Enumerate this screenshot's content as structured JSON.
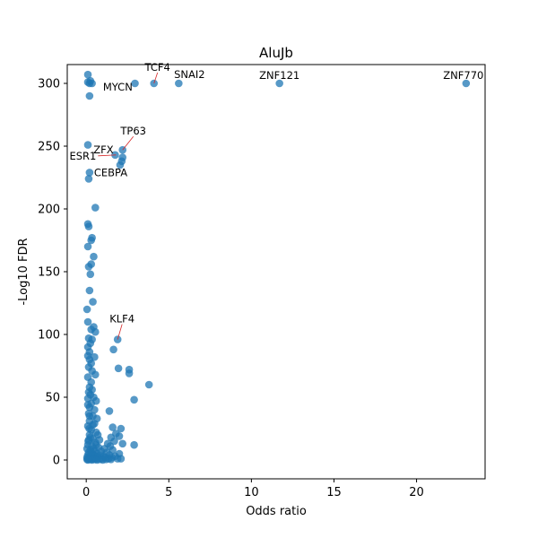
{
  "chart_data": {
    "type": "scatter",
    "title": "AluJb",
    "xlabel": "Odds ratio",
    "ylabel": "-Log10 FDR",
    "xlim": [
      -1.15,
      24.15
    ],
    "ylim": [
      -15,
      315
    ],
    "xticks": [
      0,
      5,
      10,
      15,
      20
    ],
    "yticks": [
      0,
      50,
      100,
      150,
      200,
      250,
      300
    ],
    "grid": false,
    "legend": "none",
    "point_color": "#1f77b4",
    "point_alpha": 0.75,
    "annotation_line_color": "#d62728",
    "annotations": [
      {
        "label": "TCF4",
        "x": 4.1,
        "y": 300
      },
      {
        "label": "SNAI2",
        "x": 5.6,
        "y": 300
      },
      {
        "label": "ZNF121",
        "x": 11.7,
        "y": 300
      },
      {
        "label": "ZNF770",
        "x": 23.0,
        "y": 300
      },
      {
        "label": "MYCN",
        "x": 0.2,
        "y": 300
      },
      {
        "label": "TP63",
        "x": 2.2,
        "y": 247
      },
      {
        "label": "ZFX",
        "x": 1.7,
        "y": 243
      },
      {
        "label": "ESR1",
        "x": 1.8,
        "y": 243
      },
      {
        "label": "CEBPA",
        "x": 0.2,
        "y": 229
      },
      {
        "label": "KLF4",
        "x": 1.9,
        "y": 96
      }
    ],
    "points": [
      {
        "x": 0.1,
        "y": 307
      },
      {
        "x": 0.1,
        "y": 301
      },
      {
        "x": 0.2,
        "y": 300
      },
      {
        "x": 0.25,
        "y": 302
      },
      {
        "x": 0.35,
        "y": 300
      },
      {
        "x": 0.2,
        "y": 290
      },
      {
        "x": 2.95,
        "y": 300
      },
      {
        "x": 4.1,
        "y": 300
      },
      {
        "x": 5.6,
        "y": 300
      },
      {
        "x": 11.7,
        "y": 300
      },
      {
        "x": 23.0,
        "y": 300
      },
      {
        "x": 0.1,
        "y": 251
      },
      {
        "x": 2.2,
        "y": 247
      },
      {
        "x": 1.75,
        "y": 243
      },
      {
        "x": 2.2,
        "y": 241
      },
      {
        "x": 2.15,
        "y": 238
      },
      {
        "x": 2.05,
        "y": 235
      },
      {
        "x": 0.2,
        "y": 229
      },
      {
        "x": 0.15,
        "y": 224
      },
      {
        "x": 0.55,
        "y": 201
      },
      {
        "x": 0.1,
        "y": 188
      },
      {
        "x": 0.15,
        "y": 186
      },
      {
        "x": 0.35,
        "y": 177
      },
      {
        "x": 0.3,
        "y": 175
      },
      {
        "x": 0.1,
        "y": 170
      },
      {
        "x": 0.45,
        "y": 162
      },
      {
        "x": 0.3,
        "y": 156
      },
      {
        "x": 0.15,
        "y": 154
      },
      {
        "x": 0.25,
        "y": 148
      },
      {
        "x": 0.2,
        "y": 135
      },
      {
        "x": 0.4,
        "y": 126
      },
      {
        "x": 0.05,
        "y": 120
      },
      {
        "x": 0.1,
        "y": 110
      },
      {
        "x": 0.45,
        "y": 106
      },
      {
        "x": 0.3,
        "y": 104
      },
      {
        "x": 0.55,
        "y": 102
      },
      {
        "x": 0.15,
        "y": 97
      },
      {
        "x": 0.35,
        "y": 96
      },
      {
        "x": 1.9,
        "y": 96
      },
      {
        "x": 0.25,
        "y": 93
      },
      {
        "x": 0.1,
        "y": 90
      },
      {
        "x": 1.65,
        "y": 88
      },
      {
        "x": 0.2,
        "y": 86
      },
      {
        "x": 0.1,
        "y": 83
      },
      {
        "x": 0.5,
        "y": 82
      },
      {
        "x": 0.2,
        "y": 80
      },
      {
        "x": 0.3,
        "y": 77
      },
      {
        "x": 0.15,
        "y": 74
      },
      {
        "x": 1.95,
        "y": 73
      },
      {
        "x": 2.6,
        "y": 72
      },
      {
        "x": 0.35,
        "y": 71
      },
      {
        "x": 2.6,
        "y": 69
      },
      {
        "x": 0.55,
        "y": 68
      },
      {
        "x": 0.1,
        "y": 66
      },
      {
        "x": 3.8,
        "y": 60
      },
      {
        "x": 0.2,
        "y": 58
      },
      {
        "x": 0.35,
        "y": 56
      },
      {
        "x": 0.15,
        "y": 54
      },
      {
        "x": 0.25,
        "y": 52
      },
      {
        "x": 0.45,
        "y": 50
      },
      {
        "x": 0.1,
        "y": 49
      },
      {
        "x": 2.9,
        "y": 48
      },
      {
        "x": 0.6,
        "y": 47
      },
      {
        "x": 0.3,
        "y": 45
      },
      {
        "x": 0.2,
        "y": 42
      },
      {
        "x": 0.5,
        "y": 40
      },
      {
        "x": 1.4,
        "y": 39
      },
      {
        "x": 0.15,
        "y": 37
      },
      {
        "x": 0.4,
        "y": 35
      },
      {
        "x": 0.65,
        "y": 33
      },
      {
        "x": 0.2,
        "y": 31
      },
      {
        "x": 0.5,
        "y": 29
      },
      {
        "x": 0.1,
        "y": 27
      },
      {
        "x": 1.6,
        "y": 26
      },
      {
        "x": 2.1,
        "y": 25
      },
      {
        "x": 0.3,
        "y": 24
      },
      {
        "x": 0.6,
        "y": 22
      },
      {
        "x": 1.8,
        "y": 21
      },
      {
        "x": 0.2,
        "y": 20
      },
      {
        "x": 2.0,
        "y": 19
      },
      {
        "x": 1.5,
        "y": 18
      },
      {
        "x": 0.4,
        "y": 17
      },
      {
        "x": 0.15,
        "y": 16
      },
      {
        "x": 1.7,
        "y": 15
      },
      {
        "x": 0.55,
        "y": 14
      },
      {
        "x": 1.3,
        "y": 13
      },
      {
        "x": 2.2,
        "y": 13
      },
      {
        "x": 0.1,
        "y": 12
      },
      {
        "x": 2.9,
        "y": 12
      },
      {
        "x": 0.35,
        "y": 11
      },
      {
        "x": 1.45,
        "y": 11
      },
      {
        "x": 0.75,
        "y": 10
      },
      {
        "x": 0.05,
        "y": 9
      },
      {
        "x": 1.1,
        "y": 9
      },
      {
        "x": 0.25,
        "y": 8
      },
      {
        "x": 1.6,
        "y": 8
      },
      {
        "x": 0.5,
        "y": 7
      },
      {
        "x": 0.9,
        "y": 7
      },
      {
        "x": 0.15,
        "y": 6
      },
      {
        "x": 1.25,
        "y": 6
      },
      {
        "x": 0.35,
        "y": 5
      },
      {
        "x": 0.65,
        "y": 5
      },
      {
        "x": 2.0,
        "y": 5
      },
      {
        "x": 0.1,
        "y": 4
      },
      {
        "x": 0.45,
        "y": 4
      },
      {
        "x": 0.85,
        "y": 4
      },
      {
        "x": 1.4,
        "y": 4
      },
      {
        "x": 0.2,
        "y": 3
      },
      {
        "x": 0.55,
        "y": 3
      },
      {
        "x": 1.05,
        "y": 3
      },
      {
        "x": 1.75,
        "y": 3
      },
      {
        "x": 0.05,
        "y": 2
      },
      {
        "x": 0.3,
        "y": 2
      },
      {
        "x": 0.7,
        "y": 2
      },
      {
        "x": 1.15,
        "y": 2
      },
      {
        "x": 0.15,
        "y": 1
      },
      {
        "x": 0.4,
        "y": 1
      },
      {
        "x": 0.6,
        "y": 1
      },
      {
        "x": 0.95,
        "y": 1
      },
      {
        "x": 1.35,
        "y": 1
      },
      {
        "x": 1.9,
        "y": 1
      },
      {
        "x": 0.05,
        "y": 0.5
      },
      {
        "x": 0.25,
        "y": 0.5
      },
      {
        "x": 0.5,
        "y": 0.5
      },
      {
        "x": 0.8,
        "y": 0.5
      },
      {
        "x": 1.2,
        "y": 0.5
      },
      {
        "x": 1.5,
        "y": 0.5
      },
      {
        "x": 0.1,
        "y": 0
      },
      {
        "x": 0.35,
        "y": 0
      },
      {
        "x": 0.65,
        "y": 0
      },
      {
        "x": 1.0,
        "y": 0
      },
      {
        "x": 0.2,
        "y": 35
      },
      {
        "x": 0.3,
        "y": 62
      },
      {
        "x": 0.1,
        "y": 44
      },
      {
        "x": 0.4,
        "y": 28
      },
      {
        "x": 0.25,
        "y": 18
      },
      {
        "x": 0.6,
        "y": 12
      },
      {
        "x": 0.12,
        "y": 15
      },
      {
        "x": 0.45,
        "y": 9
      },
      {
        "x": 0.8,
        "y": 16
      },
      {
        "x": 0.3,
        "y": 6
      },
      {
        "x": 1.55,
        "y": 2
      },
      {
        "x": 2.1,
        "y": 1
      },
      {
        "x": 0.7,
        "y": 20
      },
      {
        "x": 0.18,
        "y": 25
      }
    ]
  }
}
